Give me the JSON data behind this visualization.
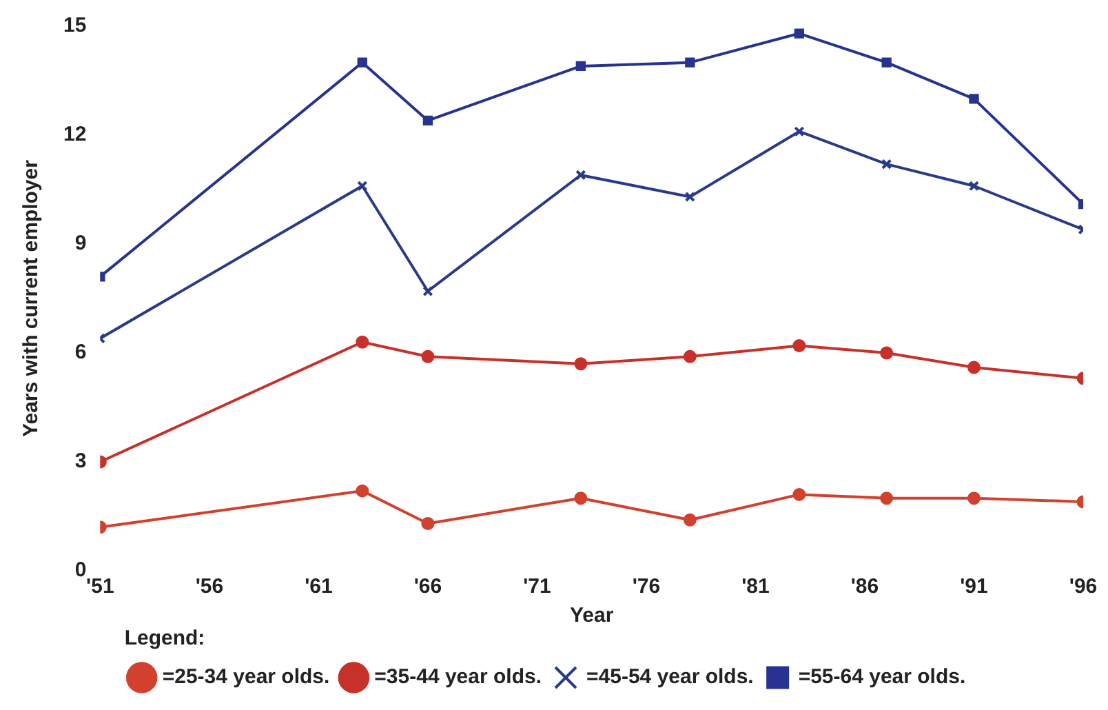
{
  "chart_data": {
    "type": "line",
    "xlabel": "Year",
    "ylabel": "Years with current employer",
    "legend_title": "Legend:",
    "x": [
      1951,
      1963,
      1966,
      1973,
      1978,
      1983,
      1987,
      1991,
      1996
    ],
    "xlim": [
      1951,
      1996
    ],
    "xticks": [
      {
        "value": 1951,
        "label": "'51"
      },
      {
        "value": 1956,
        "label": "'56"
      },
      {
        "value": 1961,
        "label": "'61"
      },
      {
        "value": 1966,
        "label": "'66"
      },
      {
        "value": 1971,
        "label": "'71"
      },
      {
        "value": 1976,
        "label": "'76"
      },
      {
        "value": 1981,
        "label": "'81"
      },
      {
        "value": 1986,
        "label": "'86"
      },
      {
        "value": 1991,
        "label": "'91"
      },
      {
        "value": 1996,
        "label": "'96"
      }
    ],
    "ylim": [
      0,
      15
    ],
    "yticks": [
      0,
      3,
      6,
      9,
      12,
      15
    ],
    "grid": false,
    "legend": "bottom",
    "series": [
      {
        "name": "=25-34 year olds.",
        "color": "#d2402e",
        "marker": "circle",
        "values": [
          1.2,
          2.2,
          1.3,
          2.0,
          1.4,
          2.1,
          2.0,
          2.0,
          1.9
        ]
      },
      {
        "name": "=35-44 year olds.",
        "color": "#c8302a",
        "marker": "circle",
        "values": [
          3.0,
          6.3,
          5.9,
          5.7,
          5.9,
          6.2,
          6.0,
          5.6,
          5.3
        ]
      },
      {
        "name": "=45-54 year olds.",
        "color": "#2a3a8a",
        "marker": "cross",
        "values": [
          6.4,
          10.6,
          7.7,
          10.9,
          10.3,
          12.1,
          11.2,
          10.6,
          9.4
        ]
      },
      {
        "name": "=55-64 year olds.",
        "color": "#263390",
        "marker": "square",
        "values": [
          8.1,
          14.0,
          12.4,
          13.9,
          14.0,
          14.8,
          14.0,
          13.0,
          10.1
        ]
      }
    ]
  }
}
